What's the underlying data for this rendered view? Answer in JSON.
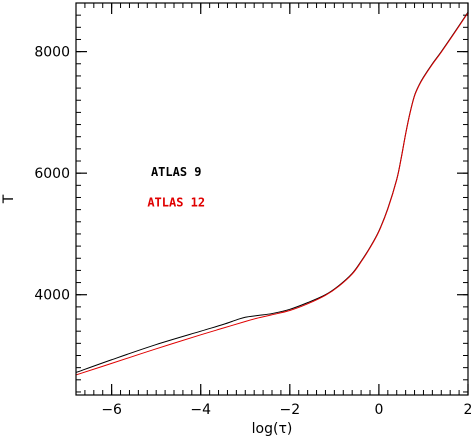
{
  "chart_data": {
    "type": "line",
    "xlabel": "log(τ)",
    "ylabel": "T",
    "xlim": [
      -6.8,
      2.0
    ],
    "ylim": [
      2350,
      8800
    ],
    "x_ticks": [
      -6,
      -4,
      -2,
      0,
      2
    ],
    "y_ticks": [
      4000,
      6000,
      8000
    ],
    "x_minor_step": 0.2,
    "y_minor_step": 200,
    "grid": false,
    "legend": "none",
    "annotations": [
      {
        "text": "ATLAS 9",
        "color": "#000000",
        "x": -4.55,
        "y": 5950
      },
      {
        "text": "ATLAS 12",
        "color": "#e00000",
        "x": -4.55,
        "y": 5450
      }
    ],
    "series": [
      {
        "color": "#000000",
        "x": [
          -6.8,
          -6.0,
          -5.0,
          -4.0,
          -3.5,
          -3.2,
          -3.0,
          -2.7,
          -2.4,
          -2.0,
          -1.6,
          -1.2,
          -0.9,
          -0.6,
          -0.4,
          -0.2,
          0.0,
          0.2,
          0.4,
          0.5,
          0.6,
          0.7,
          0.8,
          0.9,
          1.0,
          1.2,
          1.4,
          1.7,
          2.0
        ],
        "y": [
          2720,
          2930,
          3180,
          3400,
          3510,
          3585,
          3630,
          3660,
          3690,
          3760,
          3870,
          4000,
          4150,
          4350,
          4550,
          4780,
          5050,
          5420,
          5900,
          6250,
          6650,
          7000,
          7280,
          7450,
          7580,
          7800,
          8000,
          8320,
          8650
        ]
      },
      {
        "color": "#e00000",
        "x": [
          -6.8,
          -6.0,
          -5.0,
          -4.0,
          -3.5,
          -3.0,
          -2.7,
          -2.4,
          -2.0,
          -1.6,
          -1.2,
          -0.9,
          -0.6,
          -0.4,
          -0.2,
          0.0,
          0.2,
          0.4,
          0.5,
          0.6,
          0.7,
          0.8,
          0.9,
          1.0,
          1.2,
          1.4,
          1.7,
          2.0
        ],
        "y": [
          2680,
          2870,
          3110,
          3340,
          3450,
          3560,
          3620,
          3670,
          3740,
          3850,
          3990,
          4140,
          4340,
          4540,
          4770,
          5040,
          5410,
          5890,
          6240,
          6640,
          6990,
          7270,
          7440,
          7570,
          7790,
          7990,
          8310,
          8640
        ]
      }
    ]
  }
}
